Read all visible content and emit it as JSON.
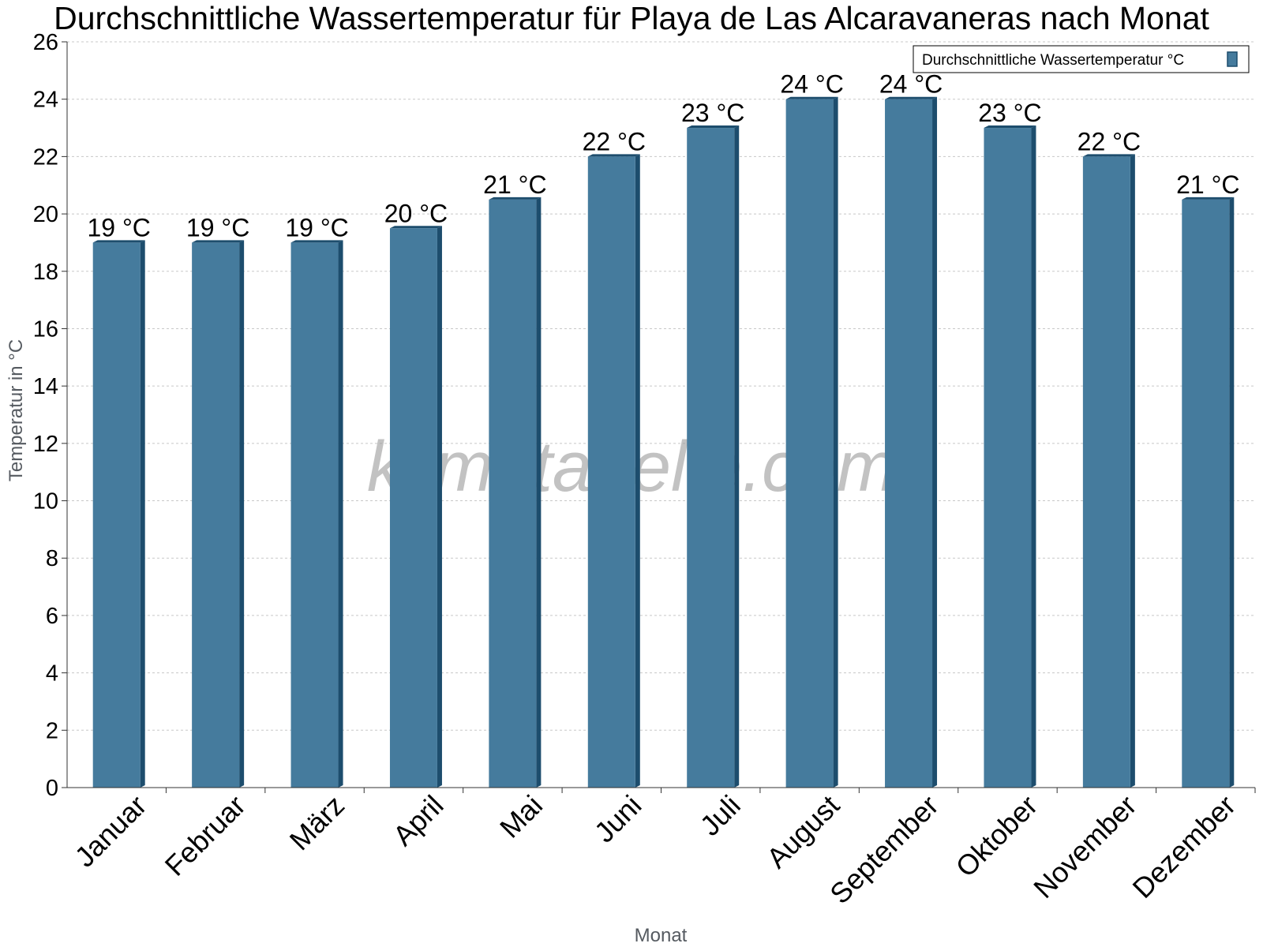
{
  "chart_data": {
    "type": "bar",
    "title": "Durchschnittliche Wassertemperatur für Playa de Las Alcaravaneras nach Monat",
    "xlabel": "Monat",
    "ylabel": "Temperatur in °C",
    "ylim": [
      0,
      26
    ],
    "yticks": [
      0,
      2,
      4,
      6,
      8,
      10,
      12,
      14,
      16,
      18,
      20,
      22,
      24,
      26
    ],
    "grid": true,
    "legend_position": "top-right",
    "categories": [
      "Januar",
      "Februar",
      "März",
      "April",
      "Mai",
      "Juni",
      "Juli",
      "August",
      "September",
      "Oktober",
      "November",
      "Dezember"
    ],
    "series": [
      {
        "name": "Durchschnittliche Wassertemperatur °C",
        "values": [
          19,
          19,
          19,
          19.5,
          20.5,
          22,
          23,
          24,
          24,
          23,
          22,
          20.5
        ],
        "labels": [
          "19 °C",
          "19 °C",
          "19 °C",
          "20 °C",
          "21 °C",
          "22 °C",
          "23 °C",
          "24 °C",
          "24 °C",
          "23 °C",
          "22 °C",
          "21 °C"
        ]
      }
    ],
    "watermark": "klimatabelle.com",
    "colors": {
      "bar_face": "#457b9d",
      "bar_side": "#1d4d6d",
      "grid": "#c8c8c8",
      "axis": "#333333"
    }
  }
}
